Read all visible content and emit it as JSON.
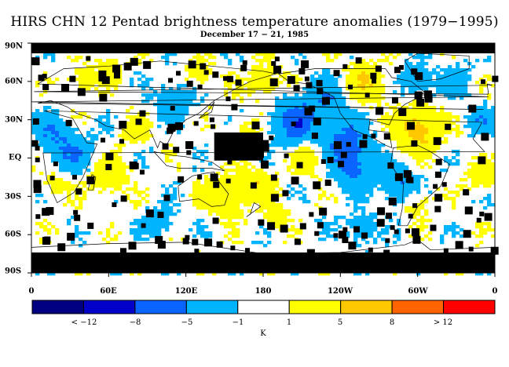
{
  "title": "HIRS CHN 12 Pentad brightness temperature anomalies (1979−1995)",
  "subtitle": "December 17 − 21, 1985",
  "lat_labels": [
    "90N",
    "60N",
    "30N",
    "EQ",
    "30S",
    "60S",
    "90S"
  ],
  "lon_labels": [
    "0",
    "60E",
    "120E",
    "180",
    "120W",
    "60W",
    "0"
  ],
  "colorbar": {
    "colors": [
      "#000080",
      "#0000c8",
      "#0a64ff",
      "#00b4ff",
      "#ffffff",
      "#ffff00",
      "#ffc800",
      "#ff9600",
      "#ff6400",
      "#ff0000"
    ],
    "labels": [
      "< −12",
      "−8",
      "−5",
      "−1",
      "1",
      "5",
      "8",
      "> 12"
    ],
    "unit": "K"
  },
  "colors": {
    "missing": "#000000",
    "coast": "#000000"
  }
}
